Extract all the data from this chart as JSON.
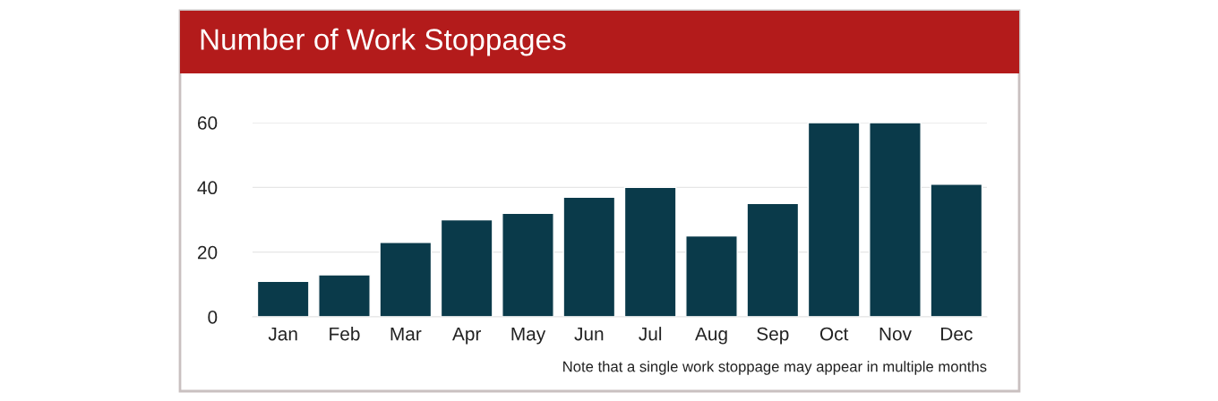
{
  "chart_data": {
    "type": "bar",
    "title": "Number of Work Stoppages",
    "categories": [
      "Jan",
      "Feb",
      "Mar",
      "Apr",
      "May",
      "Jun",
      "Jul",
      "Aug",
      "Sep",
      "Oct",
      "Nov",
      "Dec"
    ],
    "values": [
      11,
      13,
      23,
      30,
      32,
      37,
      40,
      25,
      35,
      60,
      60,
      41
    ],
    "color": "#0a3a4a",
    "ylim": [
      0,
      60
    ],
    "yticks": [
      0,
      20,
      40,
      60
    ],
    "grid": "y",
    "annotations": [
      "Note that a single work stoppage may appear in multiple months"
    ]
  }
}
